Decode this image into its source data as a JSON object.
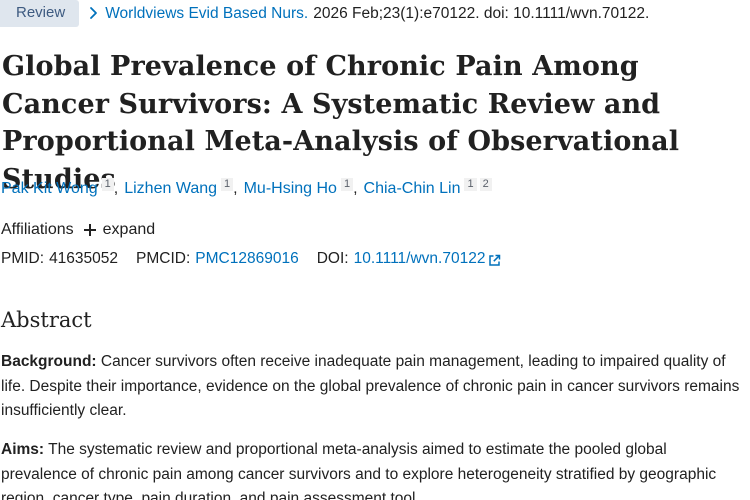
{
  "meta": {
    "badge": "Review",
    "journal": "Worldviews Evid Based Nurs.",
    "citation": "2026 Feb;23(1):e70122. doi: 10.1111/wvn.70122."
  },
  "title": "Global Prevalence of Chronic Pain Among Cancer Survivors: A Systematic Review and Proportional Meta-Analysis of Observational Studies",
  "authors": [
    {
      "name": "Pak Kit Wong",
      "affils": [
        "1"
      ]
    },
    {
      "name": "Lizhen Wang",
      "affils": [
        "1"
      ]
    },
    {
      "name": "Mu-Hsing Ho",
      "affils": [
        "1"
      ]
    },
    {
      "name": "Chia-Chin Lin",
      "affils": [
        "1",
        "2"
      ]
    }
  ],
  "affiliations": {
    "label": "Affiliations",
    "expand_label": "expand"
  },
  "identifiers": {
    "pmid_label": "PMID:",
    "pmid": "41635052",
    "pmcid_label": "PMCID:",
    "pmcid": "PMC12869016",
    "doi_label": "DOI:",
    "doi": "10.1111/wvn.70122"
  },
  "abstract": {
    "heading": "Abstract",
    "sections": [
      {
        "label": "Background:",
        "text": "Cancer survivors often receive inadequate pain management, leading to impaired quality of life. Despite their importance, evidence on the global prevalence of chronic pain in cancer survivors remains insufficiently clear."
      },
      {
        "label": "Aims:",
        "text": "The systematic review and proportional meta-analysis aimed to estimate the pooled global prevalence of chronic pain among cancer survivors and to explore heterogeneity stratified by geographic region, cancer type, pain duration, and pain assessment tool."
      }
    ]
  },
  "colors": {
    "link": "#0071bc",
    "badge_bg": "#dfe6ee",
    "badge_text": "#3d5a80",
    "text": "#212121"
  },
  "icons": [
    "chevron-right-icon",
    "plus-icon",
    "external-link-icon"
  ]
}
